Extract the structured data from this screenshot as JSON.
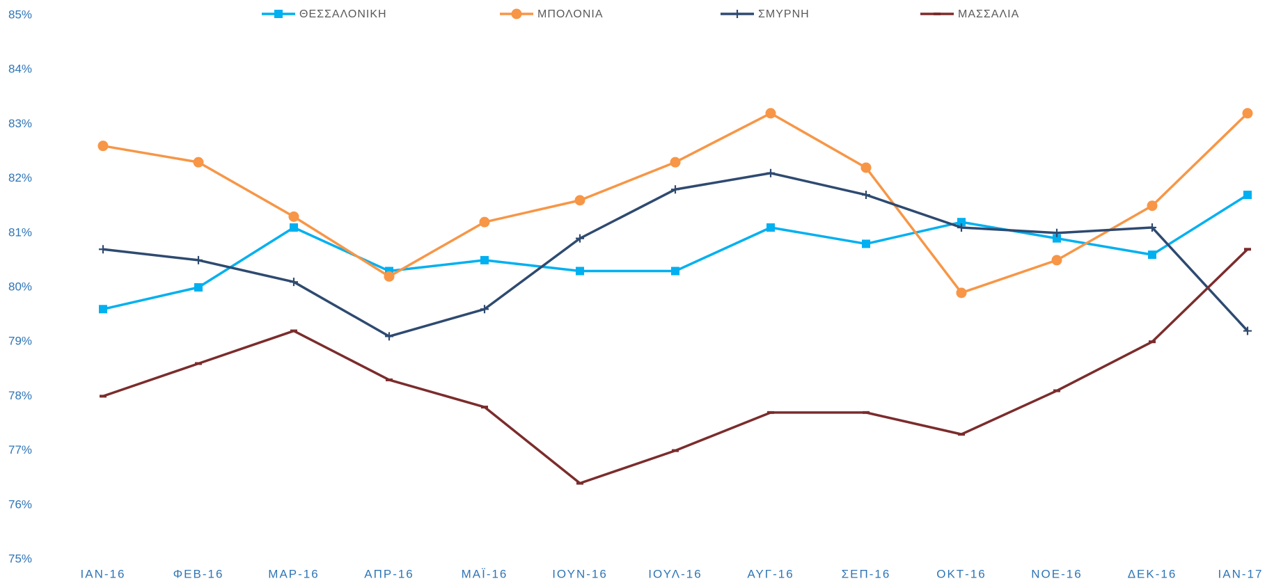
{
  "chart_data": {
    "type": "line",
    "categories": [
      "ΙΑΝ-16",
      "ΦΕΒ-16",
      "ΜΑΡ-16",
      "ΑΠΡ-16",
      "ΜΑΪ-16",
      "ΙΟΥΝ-16",
      "ΙΟΥΛ-16",
      "ΑΥΓ-16",
      "ΣΕΠ-16",
      "ΟΚΤ-16",
      "ΝΟΕ-16",
      "ΔΕΚ-16",
      "ΙΑΝ-17"
    ],
    "series": [
      {
        "name": "ΘΕΣΣΑΛΟΝΙΚΗ",
        "color": "#00b0f0",
        "marker": "square",
        "values": [
          79.6,
          80.0,
          81.1,
          80.3,
          80.5,
          80.3,
          80.3,
          81.1,
          80.8,
          81.2,
          80.9,
          80.6,
          81.7
        ]
      },
      {
        "name": "ΜΠΟΛΟΝΙΑ",
        "color": "#f79646",
        "marker": "circle",
        "values": [
          82.6,
          82.3,
          81.3,
          80.2,
          81.2,
          81.6,
          82.3,
          83.2,
          82.2,
          79.9,
          80.5,
          81.5,
          83.2
        ]
      },
      {
        "name": "ΣΜΥΡΝΗ",
        "color": "#2e4a70",
        "marker": "plus",
        "values": [
          80.7,
          80.5,
          80.1,
          79.1,
          79.6,
          80.9,
          81.8,
          82.1,
          81.7,
          81.1,
          81.0,
          81.1,
          79.2
        ]
      },
      {
        "name": "ΜΑΣΣΑΛΙΑ",
        "color": "#7b2c2c",
        "marker": "dash",
        "values": [
          78.0,
          78.6,
          79.2,
          78.3,
          77.8,
          76.4,
          77.0,
          77.7,
          77.7,
          77.3,
          78.1,
          79.0,
          80.7
        ]
      }
    ],
    "ylim": [
      75,
      85
    ],
    "yticks": [
      {
        "value": 75,
        "label": "75%"
      },
      {
        "value": 76,
        "label": "76%"
      },
      {
        "value": 77,
        "label": "77%"
      },
      {
        "value": 78,
        "label": "78%"
      },
      {
        "value": 79,
        "label": "79%"
      },
      {
        "value": 80,
        "label": "80%"
      },
      {
        "value": 81,
        "label": "81%"
      },
      {
        "value": 82,
        "label": "82%"
      },
      {
        "value": 83,
        "label": "83%"
      },
      {
        "value": 84,
        "label": "84%"
      },
      {
        "value": 85,
        "label": "85%"
      }
    ],
    "legend": "top",
    "grid": false
  }
}
